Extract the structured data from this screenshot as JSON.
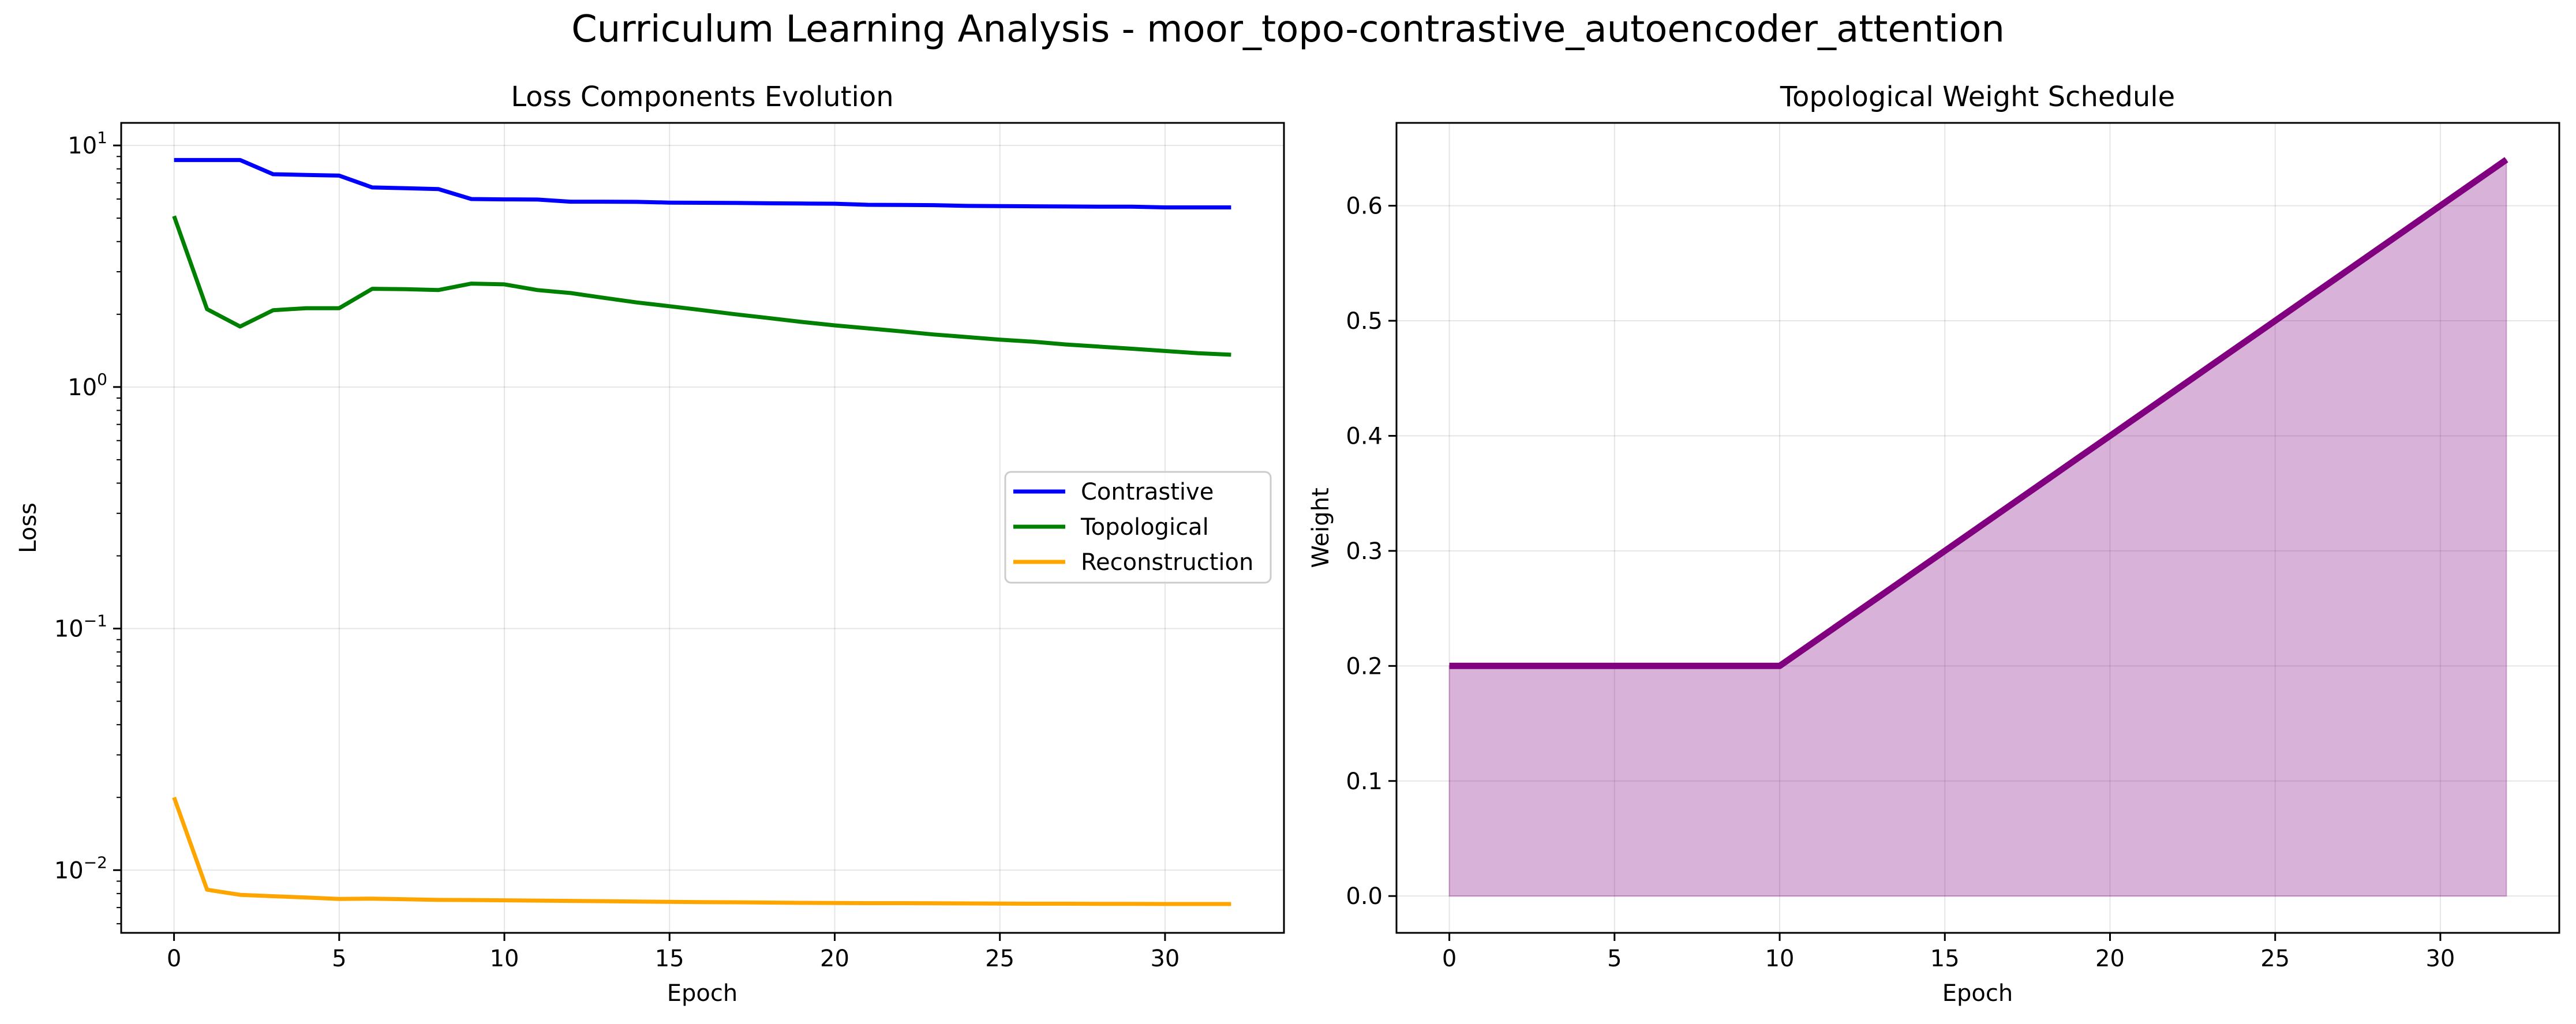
{
  "figure": {
    "suptitle": "Curriculum Learning Analysis - moor_topo-contrastive_autoencoder_attention"
  },
  "chart_data": [
    {
      "type": "line",
      "title": "Loss Components Evolution",
      "xlabel": "Epoch",
      "ylabel": "Loss",
      "yscale": "log",
      "xlim": [
        -1.6,
        33.6
      ],
      "ylim": [
        0.0055,
        12.4
      ],
      "xticks": [
        0,
        5,
        10,
        15,
        20,
        25,
        30
      ],
      "yticks": [
        {
          "value": 0.01,
          "base": "10",
          "exp": "−2"
        },
        {
          "value": 0.1,
          "base": "10",
          "exp": "−1"
        },
        {
          "value": 1,
          "base": "10",
          "exp": "0"
        },
        {
          "value": 10,
          "base": "10",
          "exp": "1"
        }
      ],
      "grid": true,
      "legend_position": "center-right",
      "x": [
        0,
        1,
        2,
        3,
        4,
        5,
        6,
        7,
        8,
        9,
        10,
        11,
        12,
        13,
        14,
        15,
        16,
        17,
        18,
        19,
        20,
        21,
        22,
        23,
        24,
        25,
        26,
        27,
        28,
        29,
        30,
        31,
        32
      ],
      "series": [
        {
          "name": "Contrastive",
          "color": "#0000ff",
          "values": [
            8.7,
            8.7,
            8.7,
            7.6,
            7.55,
            7.5,
            6.7,
            6.65,
            6.6,
            6.0,
            5.98,
            5.97,
            5.85,
            5.85,
            5.84,
            5.8,
            5.79,
            5.78,
            5.76,
            5.75,
            5.74,
            5.68,
            5.67,
            5.66,
            5.62,
            5.61,
            5.6,
            5.59,
            5.58,
            5.58,
            5.54,
            5.54,
            5.54
          ]
        },
        {
          "name": "Topological",
          "color": "#008000",
          "values": [
            5.1,
            2.1,
            1.78,
            2.08,
            2.12,
            2.12,
            2.55,
            2.54,
            2.52,
            2.68,
            2.66,
            2.52,
            2.45,
            2.34,
            2.24,
            2.16,
            2.08,
            2.0,
            1.93,
            1.86,
            1.8,
            1.75,
            1.7,
            1.65,
            1.61,
            1.57,
            1.54,
            1.5,
            1.47,
            1.44,
            1.41,
            1.38,
            1.36
          ]
        },
        {
          "name": "Reconstruction",
          "color": "#ffa500",
          "values": [
            0.02,
            0.0083,
            0.0079,
            0.0078,
            0.0077,
            0.0076,
            0.00762,
            0.00758,
            0.00753,
            0.00752,
            0.0075,
            0.00748,
            0.00746,
            0.00744,
            0.00741,
            0.00739,
            0.00737,
            0.00736,
            0.00734,
            0.00732,
            0.00731,
            0.0073,
            0.0073,
            0.00729,
            0.00728,
            0.00727,
            0.00726,
            0.00726,
            0.00725,
            0.00725,
            0.00724,
            0.00724,
            0.00724
          ]
        }
      ]
    },
    {
      "type": "area",
      "title": "Topological Weight Schedule",
      "xlabel": "Epoch",
      "ylabel": "Weight",
      "xlim": [
        -1.6,
        33.6
      ],
      "ylim": [
        -0.032,
        0.672
      ],
      "xticks": [
        0,
        5,
        10,
        15,
        20,
        25,
        30
      ],
      "yticks": [
        0.0,
        0.1,
        0.2,
        0.3,
        0.4,
        0.5,
        0.6
      ],
      "ytick_labels": [
        "0.0",
        "0.1",
        "0.2",
        "0.3",
        "0.4",
        "0.5",
        "0.6"
      ],
      "grid": true,
      "line_color": "#800080",
      "fill_color": "#800080",
      "fill_opacity": 0.3,
      "x": [
        0,
        1,
        2,
        3,
        4,
        5,
        6,
        7,
        8,
        9,
        10,
        11,
        12,
        13,
        14,
        15,
        16,
        17,
        18,
        19,
        20,
        21,
        22,
        23,
        24,
        25,
        26,
        27,
        28,
        29,
        30,
        31,
        32
      ],
      "values": [
        0.2,
        0.2,
        0.2,
        0.2,
        0.2,
        0.2,
        0.2,
        0.2,
        0.2,
        0.2,
        0.2,
        0.22,
        0.24,
        0.26,
        0.28,
        0.3,
        0.32,
        0.34,
        0.36,
        0.38,
        0.4,
        0.42,
        0.44,
        0.46,
        0.48,
        0.5,
        0.52,
        0.54,
        0.56,
        0.58,
        0.6,
        0.62,
        0.64
      ]
    }
  ]
}
